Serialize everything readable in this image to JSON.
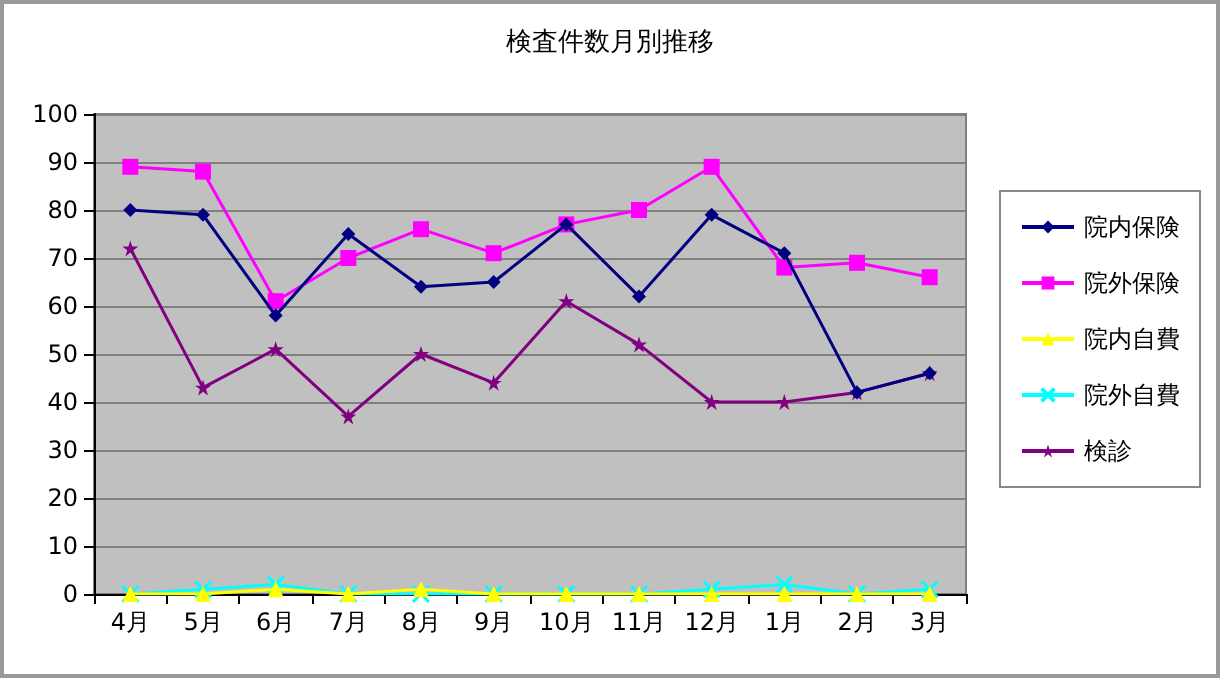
{
  "chart_data": {
    "type": "line",
    "title": "検査件数月別推移",
    "categories": [
      "4月",
      "5月",
      "6月",
      "7月",
      "8月",
      "9月",
      "10月",
      "11月",
      "12月",
      "1月",
      "2月",
      "3月"
    ],
    "series": [
      {
        "name": "院内保険",
        "color": "#000080",
        "marker": "diamond",
        "values": [
          80,
          79,
          58,
          75,
          64,
          65,
          77,
          62,
          79,
          71,
          42,
          46
        ]
      },
      {
        "name": "院外保険",
        "color": "#ff00ff",
        "marker": "square",
        "values": [
          89,
          88,
          61,
          70,
          76,
          71,
          77,
          80,
          89,
          68,
          69,
          66
        ]
      },
      {
        "name": "院内自費",
        "color": "#ffff00",
        "marker": "triangle",
        "values": [
          0,
          0,
          1,
          0,
          1,
          0,
          0,
          0,
          0,
          0,
          0,
          0
        ]
      },
      {
        "name": "院外自費",
        "color": "#00ffff",
        "marker": "cross",
        "values": [
          0,
          1,
          2,
          0,
          0,
          0,
          0,
          0,
          1,
          2,
          0,
          1
        ]
      },
      {
        "name": "検診",
        "color": "#800080",
        "marker": "star",
        "values": [
          72,
          43,
          51,
          37,
          50,
          44,
          61,
          52,
          40,
          40,
          42,
          46
        ]
      }
    ],
    "ylim": [
      0,
      100
    ],
    "yticks": [
      0,
      10,
      20,
      30,
      40,
      50,
      60,
      70,
      80,
      90,
      100
    ],
    "grid": "y",
    "legend": "right",
    "line_style": "solid"
  }
}
